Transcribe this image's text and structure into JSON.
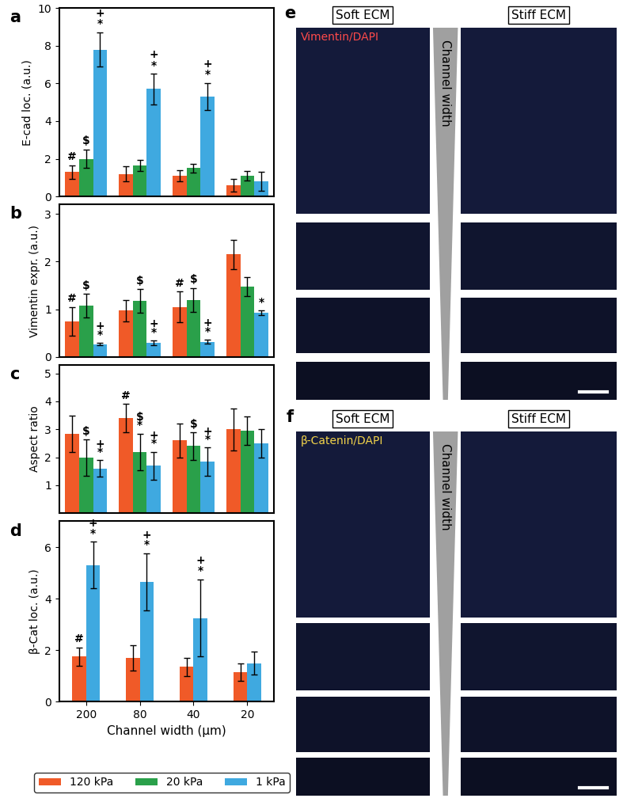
{
  "chart_data": [
    {
      "type": "bar",
      "panel": "a",
      "ylabel": "E-cad loc. (a.u.)",
      "categories": [
        "200",
        "80",
        "40",
        "20"
      ],
      "ylim": [
        0,
        10
      ],
      "yticks": [
        0,
        2,
        4,
        6,
        8,
        10
      ],
      "tick_labels": "y",
      "legend": "lower center",
      "series": [
        {
          "name": "120 kPa",
          "color": "#f05a28",
          "values": [
            1.3,
            1.2,
            1.1,
            0.6
          ],
          "errors": [
            0.35,
            0.4,
            0.3,
            0.35
          ]
        },
        {
          "name": "20 kPa",
          "color": "#2aa04a",
          "values": [
            2.0,
            1.65,
            1.5,
            1.1
          ],
          "errors": [
            0.5,
            0.3,
            0.25,
            0.25
          ]
        },
        {
          "name": "1 kPa",
          "color": "#3fa9e0",
          "values": [
            7.8,
            5.7,
            5.3,
            0.8
          ],
          "errors": [
            0.9,
            0.8,
            0.7,
            0.5
          ]
        }
      ],
      "annotations": [
        {
          "series": "120 kPa",
          "category": "200",
          "marks": [
            "#"
          ]
        },
        {
          "series": "20 kPa",
          "category": "200",
          "marks": [
            "$"
          ]
        },
        {
          "series": "1 kPa",
          "category": "200",
          "marks": [
            "*",
            "+"
          ]
        },
        {
          "series": "1 kPa",
          "category": "80",
          "marks": [
            "*",
            "+"
          ]
        },
        {
          "series": "1 kPa",
          "category": "40",
          "marks": [
            "*",
            "+"
          ]
        }
      ]
    },
    {
      "type": "bar",
      "panel": "b",
      "ylabel": "Vimentin expr. (a.u.)",
      "categories": [
        "200",
        "80",
        "40",
        "20"
      ],
      "ylim": [
        0,
        3.2
      ],
      "yticks": [
        0,
        1,
        2,
        3
      ],
      "tick_labels": "y",
      "series": [
        {
          "name": "120 kPa",
          "color": "#f05a28",
          "values": [
            0.75,
            0.97,
            1.05,
            2.15
          ],
          "errors": [
            0.3,
            0.22,
            0.33,
            0.3
          ]
        },
        {
          "name": "20 kPa",
          "color": "#2aa04a",
          "values": [
            1.07,
            1.18,
            1.2,
            1.48
          ],
          "errors": [
            0.25,
            0.25,
            0.25,
            0.2
          ]
        },
        {
          "name": "1 kPa",
          "color": "#3fa9e0",
          "values": [
            0.27,
            0.3,
            0.32,
            0.92
          ],
          "errors": [
            0.03,
            0.05,
            0.04,
            0.05
          ]
        }
      ],
      "annotations": [
        {
          "series": "120 kPa",
          "category": "200",
          "marks": [
            "#"
          ]
        },
        {
          "series": "20 kPa",
          "category": "200",
          "marks": [
            "$"
          ]
        },
        {
          "series": "1 kPa",
          "category": "200",
          "marks": [
            "*",
            "+"
          ]
        },
        {
          "series": "20 kPa",
          "category": "80",
          "marks": [
            "$"
          ]
        },
        {
          "series": "1 kPa",
          "category": "80",
          "marks": [
            "*",
            "+"
          ]
        },
        {
          "series": "120 kPa",
          "category": "40",
          "marks": [
            "#"
          ]
        },
        {
          "series": "20 kPa",
          "category": "40",
          "marks": [
            "$"
          ]
        },
        {
          "series": "1 kPa",
          "category": "40",
          "marks": [
            "*",
            "+"
          ]
        },
        {
          "series": "1 kPa",
          "category": "20",
          "marks": [
            "*"
          ]
        }
      ]
    },
    {
      "type": "bar",
      "panel": "c",
      "ylabel": "Aspect ratio",
      "categories": [
        "200",
        "80",
        "40",
        "20"
      ],
      "ylim": [
        0,
        5.3
      ],
      "yticks": [
        1,
        2,
        3,
        4,
        5
      ],
      "tick_labels": "y",
      "series": [
        {
          "name": "120 kPa",
          "color": "#f05a28",
          "values": [
            2.85,
            3.4,
            2.6,
            3.0
          ],
          "errors": [
            0.65,
            0.5,
            0.6,
            0.75
          ]
        },
        {
          "name": "20 kPa",
          "color": "#2aa04a",
          "values": [
            2.0,
            2.2,
            2.4,
            2.95
          ],
          "errors": [
            0.65,
            0.65,
            0.5,
            0.5
          ]
        },
        {
          "name": "1 kPa",
          "color": "#3fa9e0",
          "values": [
            1.6,
            1.7,
            1.85,
            2.5
          ],
          "errors": [
            0.3,
            0.5,
            0.5,
            0.5
          ]
        }
      ],
      "annotations": [
        {
          "series": "20 kPa",
          "category": "200",
          "marks": [
            "$"
          ]
        },
        {
          "series": "1 kPa",
          "category": "200",
          "marks": [
            "*",
            "+"
          ]
        },
        {
          "series": "120 kPa",
          "category": "80",
          "marks": [
            "#"
          ]
        },
        {
          "series": "20 kPa",
          "category": "80",
          "marks": [
            "*",
            "$"
          ]
        },
        {
          "series": "1 kPa",
          "category": "80",
          "marks": [
            "*",
            "+"
          ]
        },
        {
          "series": "20 kPa",
          "category": "40",
          "marks": [
            "$"
          ]
        },
        {
          "series": "1 kPa",
          "category": "40",
          "marks": [
            "*",
            "+"
          ]
        }
      ]
    },
    {
      "type": "bar",
      "panel": "d",
      "ylabel": "β-Cat loc. (a.u.)",
      "xlabel": "Channel width (µm)",
      "categories": [
        "200",
        "80",
        "40",
        "20"
      ],
      "ylim": [
        0,
        7
      ],
      "yticks": [
        0,
        2,
        4,
        6
      ],
      "series": [
        {
          "name": "120 kPa",
          "color": "#f05a28",
          "values": [
            1.75,
            1.7,
            1.35,
            1.15
          ],
          "errors": [
            0.35,
            0.5,
            0.35,
            0.35
          ]
        },
        {
          "name": "1 kPa",
          "color": "#3fa9e0",
          "values": [
            5.3,
            4.65,
            3.25,
            1.5
          ],
          "errors": [
            0.9,
            1.1,
            1.5,
            0.45
          ]
        }
      ],
      "annotations": [
        {
          "series": "120 kPa",
          "category": "200",
          "marks": [
            "#"
          ]
        },
        {
          "series": "1 kPa",
          "category": "200",
          "marks": [
            "*",
            "+"
          ]
        },
        {
          "series": "1 kPa",
          "category": "80",
          "marks": [
            "*",
            "+"
          ]
        },
        {
          "series": "1 kPa",
          "category": "40",
          "marks": [
            "*",
            "+"
          ]
        }
      ]
    }
  ],
  "image_panels": [
    {
      "panel": "e",
      "stain": "Vimentin/DAPI",
      "columns": [
        "Soft ECM",
        "Stiff ECM"
      ],
      "axis_label": "Channel width"
    },
    {
      "panel": "f",
      "stain": "β-Catenin/DAPI",
      "columns": [
        "Soft ECM",
        "Stiff ECM"
      ],
      "axis_label": "Channel width"
    }
  ]
}
